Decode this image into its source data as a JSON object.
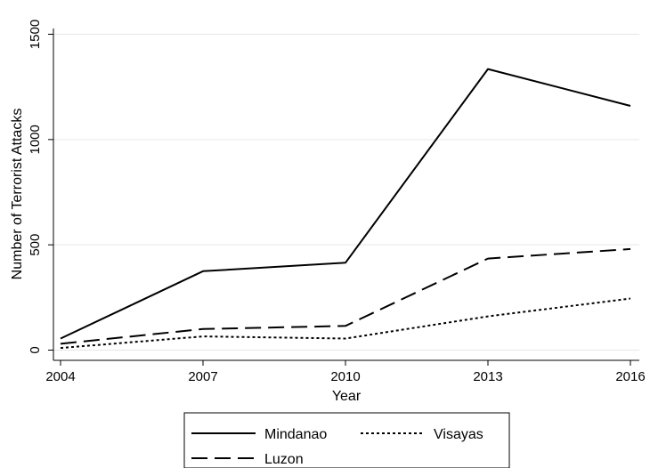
{
  "chart_data": {
    "type": "line",
    "xlabel": "Year",
    "ylabel": "Number of Terrorist Attacks",
    "x": [
      2004,
      2007,
      2010,
      2013,
      2016
    ],
    "xticks": [
      "2004",
      "2007",
      "2010",
      "2013",
      "2016"
    ],
    "yticks": [
      "0",
      "500",
      "1000",
      "1500"
    ],
    "ylim": [
      0,
      1500
    ],
    "grid": true,
    "legend_position": "bottom",
    "series": [
      {
        "name": "Mindanao",
        "values": [
          55,
          375,
          415,
          1335,
          1160
        ],
        "style": "solid"
      },
      {
        "name": "Visayas",
        "values": [
          10,
          65,
          55,
          160,
          245
        ],
        "style": "dotted"
      },
      {
        "name": "Luzon",
        "values": [
          30,
          100,
          115,
          435,
          480
        ],
        "style": "dashed"
      }
    ]
  }
}
